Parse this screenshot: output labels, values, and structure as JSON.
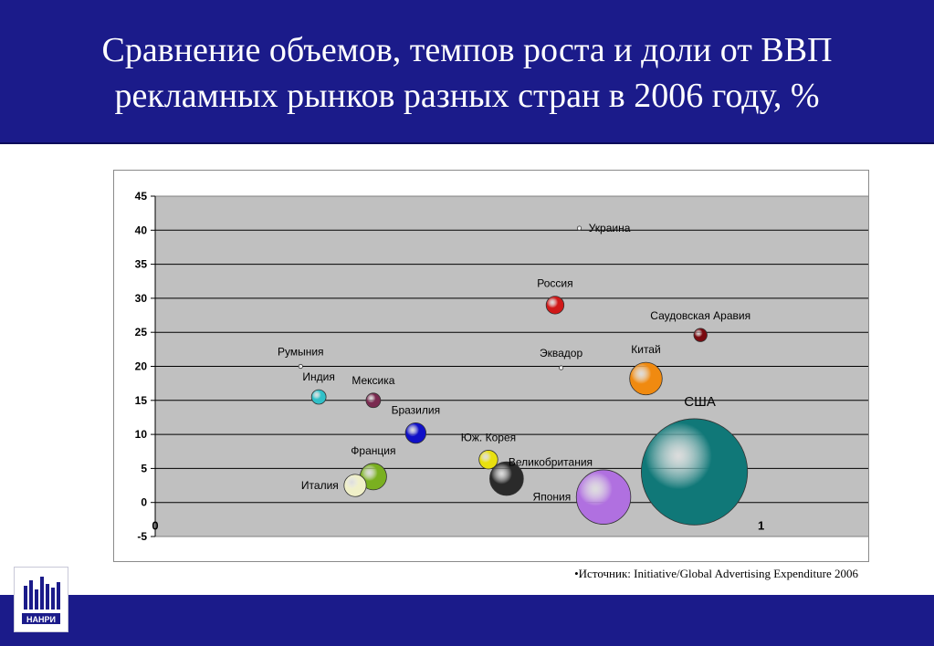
{
  "header": {
    "title_line1": "Сравнение объемов, темпов роста и доли от ВВП",
    "title_line2": "рекламных рынков разных стран в 2006 году, %"
  },
  "source_text": "•Источник: Initiative/Global Advertising Expenditure 2006",
  "logo": {
    "text": "НАНРИ"
  },
  "colors": {
    "header_bg": "#1b1b8a",
    "plot_bg": "#c0c0c0"
  },
  "chart_data": {
    "type": "bubble",
    "title": "",
    "xlabel": "",
    "ylabel": "",
    "ylim": [
      -5,
      45
    ],
    "yticks": [
      -5,
      0,
      5,
      10,
      15,
      20,
      25,
      30,
      35,
      40,
      45
    ],
    "xlim": [
      0,
      1.18
    ],
    "x_tick_labels": [
      {
        "x": 0,
        "label": "0"
      },
      {
        "x": 1,
        "label": "1"
      }
    ],
    "grid": true,
    "points": [
      {
        "name": "Украина",
        "x": 0.7,
        "y": 40.3,
        "size": 0.2,
        "color": "#ffffff",
        "label_pos": "right"
      },
      {
        "name": "Россия",
        "x": 0.66,
        "y": 29.0,
        "size": 4.5,
        "color": "#d01818",
        "label_pos": "above"
      },
      {
        "name": "Саудовская Аравия",
        "x": 0.9,
        "y": 24.6,
        "size": 2.5,
        "color": "#7a0a10",
        "label_pos": "above"
      },
      {
        "name": "Румыния",
        "x": 0.24,
        "y": 20.0,
        "size": 0.1,
        "color": "#ffffff",
        "label_pos": "above"
      },
      {
        "name": "Эквадор",
        "x": 0.67,
        "y": 19.8,
        "size": 0.1,
        "color": "#ffffff",
        "label_pos": "above"
      },
      {
        "name": "Китай",
        "x": 0.81,
        "y": 18.2,
        "size": 15,
        "color": "#f08a10",
        "label_pos": "above"
      },
      {
        "name": "Индия",
        "x": 0.27,
        "y": 15.5,
        "size": 3,
        "color": "#30c0c8",
        "label_pos": "above"
      },
      {
        "name": "Мексика",
        "x": 0.36,
        "y": 15.0,
        "size": 3,
        "color": "#7a2a50",
        "label_pos": "above"
      },
      {
        "name": "Бразилия",
        "x": 0.43,
        "y": 10.2,
        "size": 6,
        "color": "#1010c8",
        "label_pos": "above"
      },
      {
        "name": "Юж. Корея",
        "x": 0.55,
        "y": 6.3,
        "size": 5,
        "color": "#e8e010",
        "label_pos": "above"
      },
      {
        "name": "Великобритания",
        "x": 0.58,
        "y": 3.5,
        "size": 16,
        "color": "#2a2a2a",
        "label_pos": "right"
      },
      {
        "name": "Франция",
        "x": 0.36,
        "y": 3.8,
        "size": 10,
        "color": "#7ab020",
        "label_pos": "above"
      },
      {
        "name": "Италия",
        "x": 0.33,
        "y": 2.5,
        "size": 7,
        "color": "#f0f0c8",
        "label_pos": "left"
      },
      {
        "name": "Япония",
        "x": 0.74,
        "y": 0.8,
        "size": 42,
        "color": "#b070e0",
        "label_pos": "left"
      },
      {
        "name": "США",
        "x": 0.89,
        "y": 4.5,
        "size": 160,
        "color": "#107878",
        "label_pos": "above"
      }
    ]
  }
}
